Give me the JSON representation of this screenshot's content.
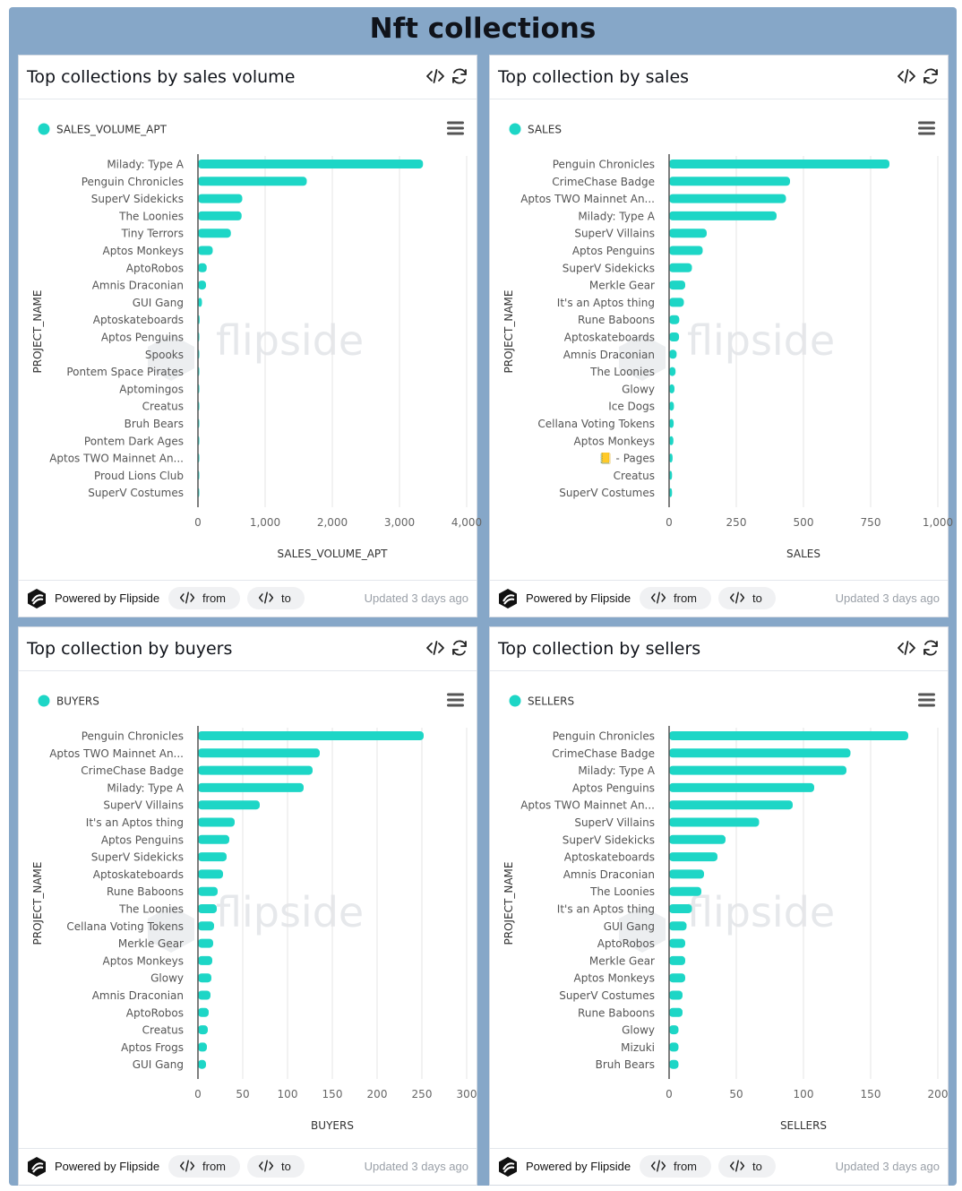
{
  "dashboard": {
    "title": "Nft collections"
  },
  "colors": {
    "bar": "#1dd6c6",
    "grid": "#e5e5e5",
    "axis": "#555555"
  },
  "icons": {
    "embed": "code-icon",
    "refresh": "refresh-icon",
    "menu": "hamburger-menu-icon",
    "logo": "flipside-logo-icon"
  },
  "footer": {
    "powered": "Powered by Flipside",
    "from_label": "from",
    "to_label": "to",
    "updated": "Updated 3 days ago"
  },
  "watermark": "flipside",
  "panels": [
    {
      "title": "Top collections by sales volume"
    },
    {
      "title": "Top collection by sales"
    },
    {
      "title": "Top collection by buyers"
    },
    {
      "title": "Top collection by sellers"
    }
  ],
  "chart_data": [
    {
      "type": "bar",
      "orientation": "horizontal",
      "title": "Top collections by sales volume",
      "xlabel": "SALES_VOLUME_APT",
      "ylabel": "PROJECT_NAME",
      "xlim": [
        0,
        4000
      ],
      "xticks": [
        "0",
        "1,000",
        "2,000",
        "3,000",
        "4,000"
      ],
      "xtick_values": [
        0,
        1000,
        2000,
        3000,
        4000
      ],
      "grid": true,
      "legend": "top-left",
      "categories": [
        "Milady: Type A",
        "Penguin Chronicles",
        "SuperV Sidekicks",
        "The Loonies",
        "Tiny Terrors",
        "Aptos Monkeys",
        "AptoRobos",
        "Amnis Draconian",
        "GUI Gang",
        "Aptoskateboards",
        "Aptos Penguins",
        "Spooks",
        "Pontem Space Pirates",
        "Aptomingos",
        "Creatus",
        "Bruh Bears",
        "Pontem Dark Ages",
        "Aptos TWO Mainnet An...",
        "Proud Lions Club",
        "SuperV Costumes"
      ],
      "series": [
        {
          "name": "SALES_VOLUME_APT",
          "values": [
            3350,
            1620,
            660,
            650,
            490,
            220,
            130,
            120,
            60,
            25,
            20,
            15,
            12,
            8,
            6,
            5,
            4,
            3,
            3,
            2
          ]
        }
      ]
    },
    {
      "type": "bar",
      "orientation": "horizontal",
      "title": "Top collection by sales",
      "xlabel": "SALES",
      "ylabel": "PROJECT_NAME",
      "xlim": [
        0,
        1000
      ],
      "xticks": [
        "0",
        "250",
        "500",
        "750",
        "1,000"
      ],
      "xtick_values": [
        0,
        250,
        500,
        750,
        1000
      ],
      "grid": true,
      "legend": "top-left",
      "categories": [
        "Penguin Chronicles",
        "CrimeChase Badge",
        "Aptos TWO Mainnet An...",
        "Milady: Type A",
        "SuperV Villains",
        "Aptos Penguins",
        "SuperV Sidekicks",
        "Merkle Gear",
        "It's an Aptos thing",
        "Rune Baboons",
        "Aptoskateboards",
        "Amnis Draconian",
        "The Loonies",
        "Glowy",
        "Ice Dogs",
        "Cellana Voting Tokens",
        "Aptos Monkeys",
        "📒 - Pages",
        "Creatus",
        "SuperV Costumes"
      ],
      "series": [
        {
          "name": "SALES",
          "values": [
            820,
            450,
            435,
            400,
            140,
            125,
            85,
            60,
            55,
            38,
            37,
            28,
            24,
            20,
            18,
            17,
            16,
            13,
            11,
            11
          ]
        }
      ]
    },
    {
      "type": "bar",
      "orientation": "horizontal",
      "title": "Top collection by buyers",
      "xlabel": "BUYERS",
      "ylabel": "PROJECT_NAME",
      "xlim": [
        0,
        300
      ],
      "xticks": [
        "0",
        "50",
        "100",
        "150",
        "200",
        "250",
        "300"
      ],
      "xtick_values": [
        0,
        50,
        100,
        150,
        200,
        250,
        300
      ],
      "grid": true,
      "legend": "top-left",
      "categories": [
        "Penguin Chronicles",
        "Aptos TWO Mainnet An...",
        "CrimeChase Badge",
        "Milady: Type A",
        "SuperV Villains",
        "It's an Aptos thing",
        "Aptos Penguins",
        "SuperV Sidekicks",
        "Aptoskateboards",
        "Rune Baboons",
        "The Loonies",
        "Cellana Voting Tokens",
        "Merkle Gear",
        "Aptos Monkeys",
        "Glowy",
        "Amnis Draconian",
        "AptoRobos",
        "Creatus",
        "Aptos Frogs",
        "GUI Gang"
      ],
      "series": [
        {
          "name": "BUYERS",
          "values": [
            252,
            136,
            128,
            118,
            69,
            41,
            35,
            32,
            28,
            22,
            21,
            18,
            17,
            16,
            15,
            14,
            12,
            11,
            10,
            9
          ]
        }
      ]
    },
    {
      "type": "bar",
      "orientation": "horizontal",
      "title": "Top collection by sellers",
      "xlabel": "SELLERS",
      "ylabel": "PROJECT_NAME",
      "xlim": [
        0,
        200
      ],
      "xticks": [
        "0",
        "50",
        "100",
        "150",
        "200"
      ],
      "xtick_values": [
        0,
        50,
        100,
        150,
        200
      ],
      "grid": true,
      "legend": "top-left",
      "categories": [
        "Penguin Chronicles",
        "CrimeChase Badge",
        "Milady: Type A",
        "Aptos Penguins",
        "Aptos TWO Mainnet An...",
        "SuperV Villains",
        "SuperV Sidekicks",
        "Aptoskateboards",
        "Amnis Draconian",
        "The Loonies",
        "It's an Aptos thing",
        "GUI Gang",
        "AptoRobos",
        "Merkle Gear",
        "Aptos Monkeys",
        "SuperV Costumes",
        "Rune Baboons",
        "Glowy",
        "Mizuki",
        "Bruh Bears"
      ],
      "series": [
        {
          "name": "SELLERS",
          "values": [
            178,
            135,
            132,
            108,
            92,
            67,
            42,
            36,
            26,
            24,
            17,
            13,
            12,
            12,
            12,
            10,
            10,
            7,
            7,
            7
          ]
        }
      ]
    }
  ]
}
